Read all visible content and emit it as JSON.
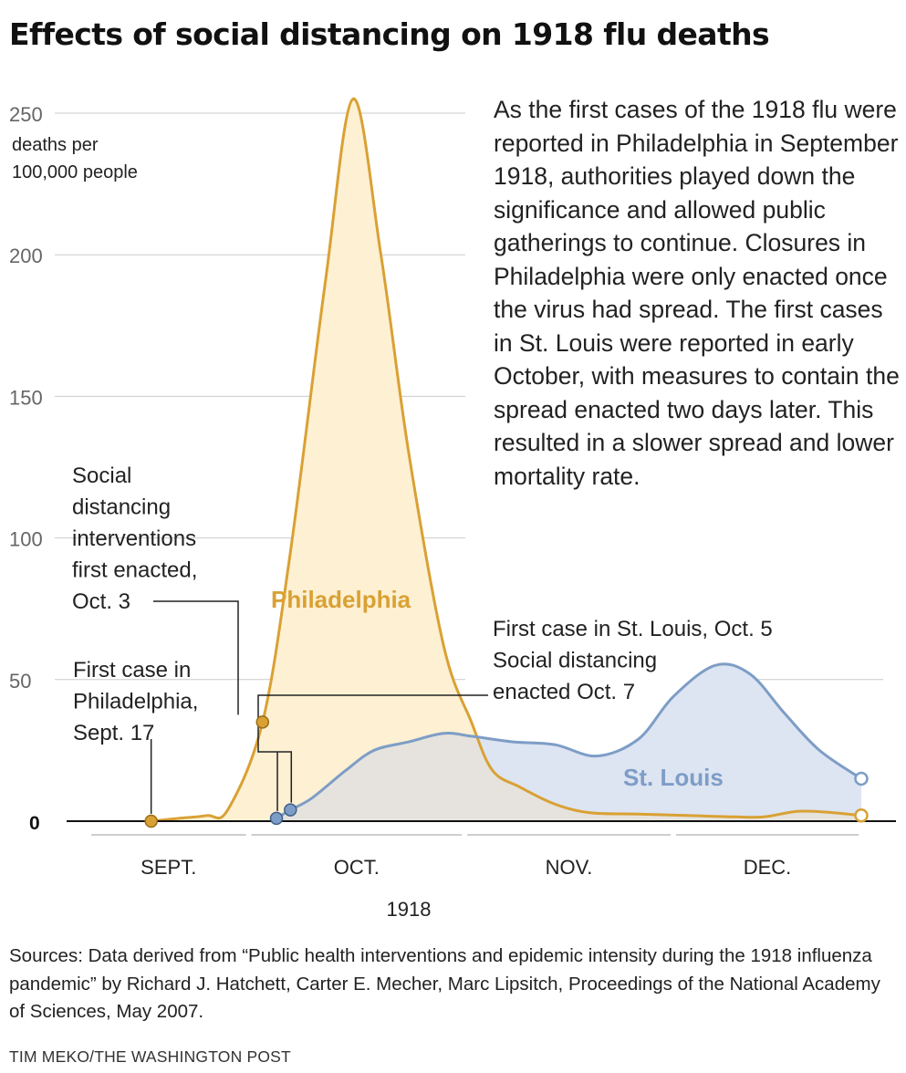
{
  "title": "Effects of social distancing on 1918 flu deaths",
  "description": "As the first cases of the 1918 flu were reported in Philadelphia in September 1918, authorities played down the significance and allowed public gatherings to continue. Closures in Philadelphia were only enacted once the virus had spread. The first cases in St. Louis were reported in early October, with measures to contain the spread enacted two days later. This resulted in a slower spread and lower mortality rate.",
  "source": "Sources: Data derived from “Public health interventions and epidemic intensity during the 1918 influenza pandemic” by Richard J. Hatchett, Carter E. Mecher, Marc Lipsitch, Proceedings of the National Academy of Sciences, May 2007.",
  "credit": "TIM MEKO/THE WASHINGTON POST",
  "colors": {
    "philadelphia_line": "#d9a134",
    "philadelphia_fill": "#fdf0d3",
    "st_louis_line": "#7d9dc6",
    "st_louis_fill": "#dde4f2",
    "overlap_fill": "#e6e3de",
    "grid": "#cccccc",
    "axis": "#111111"
  },
  "chart_data": {
    "type": "area",
    "ylabel": "deaths per 100,000 people",
    "ylim": [
      0,
      250
    ],
    "yticks": [
      {
        "value": 250,
        "label": "250"
      },
      {
        "value": 200,
        "label": "200"
      },
      {
        "value": 150,
        "label": "150"
      },
      {
        "value": 100,
        "label": "100"
      },
      {
        "value": 50,
        "label": "50"
      },
      {
        "value": 0,
        "label": "0"
      }
    ],
    "xlabel": "1918",
    "xlim": [
      "1918-09-08",
      "1918-12-28"
    ],
    "months": [
      {
        "label": "SEPT.",
        "start": "1918-09-08",
        "end": "1918-10-01"
      },
      {
        "label": "OCT.",
        "start": "1918-10-01",
        "end": "1918-11-01"
      },
      {
        "label": "NOV.",
        "start": "1918-11-01",
        "end": "1918-12-01"
      },
      {
        "label": "DEC.",
        "start": "1918-12-01",
        "end": "1918-12-28"
      }
    ],
    "grid": true,
    "series": [
      {
        "name": "Philadelphia",
        "points": [
          [
            "1918-09-17",
            0
          ],
          [
            "1918-09-21",
            1
          ],
          [
            "1918-09-25",
            2
          ],
          [
            "1918-09-28",
            4
          ],
          [
            "1918-10-03",
            35
          ],
          [
            "1918-10-07",
            95
          ],
          [
            "1918-10-12",
            190
          ],
          [
            "1918-10-16",
            255
          ],
          [
            "1918-10-20",
            200
          ],
          [
            "1918-10-24",
            130
          ],
          [
            "1918-10-29",
            62
          ],
          [
            "1918-11-02",
            35
          ],
          [
            "1918-11-05",
            18
          ],
          [
            "1918-11-09",
            12
          ],
          [
            "1918-11-14",
            6
          ],
          [
            "1918-11-19",
            3
          ],
          [
            "1918-11-26",
            2.5
          ],
          [
            "1918-12-03",
            2
          ],
          [
            "1918-12-10",
            1.5
          ],
          [
            "1918-12-14",
            1.5
          ],
          [
            "1918-12-19",
            3.5
          ],
          [
            "1918-12-24",
            3
          ],
          [
            "1918-12-28",
            2
          ]
        ]
      },
      {
        "name": "St. Louis",
        "points": [
          [
            "1918-10-05",
            1
          ],
          [
            "1918-10-07",
            4
          ],
          [
            "1918-10-10",
            8
          ],
          [
            "1918-10-15",
            18
          ],
          [
            "1918-10-19",
            25
          ],
          [
            "1918-10-24",
            28
          ],
          [
            "1918-10-29",
            31
          ],
          [
            "1918-11-02",
            30
          ],
          [
            "1918-11-08",
            28
          ],
          [
            "1918-11-14",
            27
          ],
          [
            "1918-11-20",
            23
          ],
          [
            "1918-11-26",
            29
          ],
          [
            "1918-12-01",
            44
          ],
          [
            "1918-12-07",
            55
          ],
          [
            "1918-12-12",
            52
          ],
          [
            "1918-12-17",
            38
          ],
          [
            "1918-12-22",
            25
          ],
          [
            "1918-12-28",
            15
          ]
        ]
      }
    ],
    "annotations": [
      {
        "lines": [
          "Social",
          "distancing",
          "interventions",
          "first enacted,",
          "Oct. 3"
        ],
        "date": "1918-10-03",
        "value": 35,
        "series": "Philadelphia"
      },
      {
        "lines": [
          "First case in",
          "Philadelphia,",
          "Sept. 17"
        ],
        "date": "1918-09-17",
        "value": 0,
        "series": "Philadelphia"
      },
      {
        "lines": [
          "First case in St. Louis, Oct. 5",
          "Social distancing",
          "enacted Oct. 7"
        ],
        "date": "1918-10-05",
        "value": 1,
        "series": "St. Louis"
      }
    ],
    "series_labels": [
      {
        "text": "Philadelphia",
        "series": "Philadelphia"
      },
      {
        "text": "St. Louis",
        "series": "St. Louis"
      }
    ]
  }
}
